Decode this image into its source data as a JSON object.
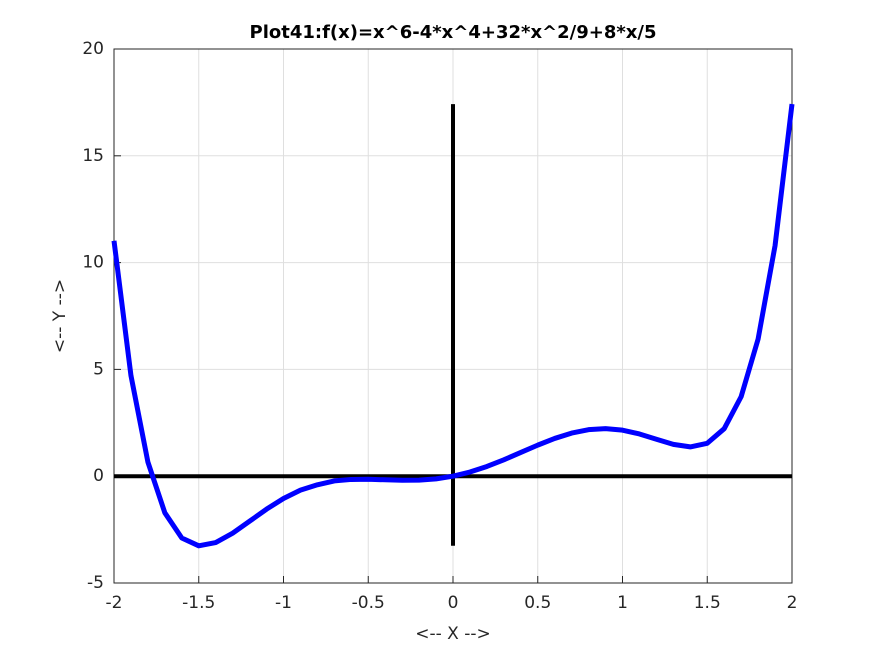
{
  "chart_data": {
    "type": "line",
    "title": "Plot41:f(x)=x^6-4*x^4+32*x^2/9+8*x/5",
    "x_label": "<-- X -->",
    "y_label": "<-- Y -->",
    "x": [
      -2,
      -1.9,
      -1.8,
      -1.7,
      -1.6,
      -1.5,
      -1.4,
      -1.3,
      -1.2,
      -1.1,
      -1,
      -0.9,
      -0.8,
      -0.7,
      -0.6,
      -0.5,
      -0.4,
      -0.3,
      -0.2,
      -0.1,
      0,
      0.1,
      0.2,
      0.3,
      0.4,
      0.5,
      0.6,
      0.7,
      0.8,
      0.9,
      1,
      1.1,
      1.2,
      1.3,
      1.4,
      1.5,
      1.6,
      1.7,
      1.8,
      1.9,
      2
    ],
    "series": [
      {
        "color": "#0000ff",
        "values": [
          11.022,
          4.713,
          0.662,
          -1.715,
          -2.895,
          -3.259,
          -3.108,
          -2.669,
          -2.108,
          -1.543,
          -1.044,
          -0.653,
          -0.401,
          -0.221,
          -0.152,
          -0.145,
          -0.169,
          -0.192,
          -0.184,
          -0.125,
          0,
          0.195,
          0.456,
          0.768,
          1.111,
          1.455,
          1.768,
          2.019,
          2.179,
          2.227,
          2.156,
          1.977,
          1.732,
          1.491,
          1.372,
          1.541,
          2.225,
          3.725,
          6.422,
          10.793,
          17.422
        ]
      }
    ],
    "hline": {
      "y": 0,
      "xmin": -2,
      "xmax": 2,
      "color": "#000000"
    },
    "vline": {
      "x": 0,
      "ymin": -3.259,
      "ymax": 17.422,
      "color": "#000000"
    },
    "xlim": [
      -2,
      2
    ],
    "ylim": [
      -5,
      20
    ],
    "xticks": [
      -2,
      -1.5,
      -1,
      -0.5,
      0,
      0.5,
      1,
      1.5,
      2
    ],
    "yticks": [
      -5,
      0,
      5,
      10,
      15,
      20
    ],
    "grid": true
  }
}
